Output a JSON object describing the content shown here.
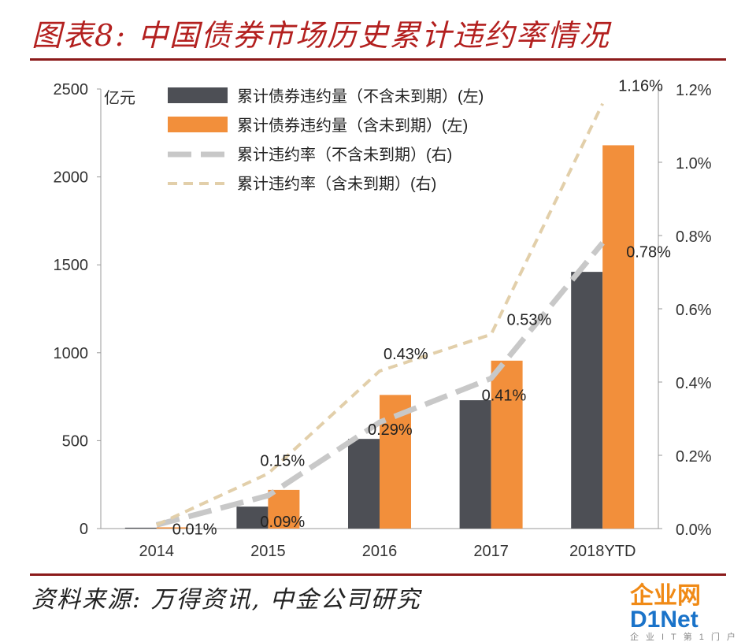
{
  "title": "图表8: 中国债券市场历史累计违约率情况",
  "source": "资料来源: 万得资讯, 中金公司研究",
  "watermark": {
    "part1": "企业网",
    "part2": "D1Net",
    "sub": "企业IT第1门户"
  },
  "colors": {
    "title": "#b3201f",
    "rule": "#8b1a1a",
    "bar_excl": "#4d4f55",
    "bar_incl": "#f28f3b",
    "line_excl": "#c8c8c8",
    "line_incl": "#e2cfaa"
  },
  "chart_data": {
    "type": "bar",
    "categories": [
      "2014",
      "2015",
      "2016",
      "2017",
      "2018YTD"
    ],
    "left_axis": {
      "unit": "亿元",
      "ylim": [
        0,
        2500
      ],
      "ticks": [
        0,
        500,
        1000,
        1500,
        2000,
        2500
      ]
    },
    "right_axis": {
      "ylim": [
        0.0,
        1.2
      ],
      "ticks": [
        "0.0%",
        "0.2%",
        "0.4%",
        "0.6%",
        "0.8%",
        "1.0%",
        "1.2%"
      ]
    },
    "series": [
      {
        "name": "累计债券违约量（不含未到期）(左)",
        "kind": "bar",
        "axis": "left",
        "values": [
          5,
          125,
          510,
          730,
          1460
        ]
      },
      {
        "name": "累计债券违约量（含未到期）(左)",
        "kind": "bar",
        "axis": "left",
        "values": [
          7,
          220,
          760,
          955,
          2180
        ]
      },
      {
        "name": "累计违约率（不含未到期）(右)",
        "kind": "line",
        "axis": "right",
        "style": "long-dash",
        "values": [
          0.01,
          0.09,
          0.29,
          0.41,
          0.78
        ],
        "labels": [
          "0.01%",
          "0.09%",
          "0.29%",
          "0.41%",
          "0.78%"
        ]
      },
      {
        "name": "累计违约率（含未到期）(右)",
        "kind": "line",
        "axis": "right",
        "style": "short-dash",
        "values": [
          0.01,
          0.15,
          0.43,
          0.53,
          1.16
        ],
        "labels": [
          "",
          "0.15%",
          "0.43%",
          "0.53%",
          "1.16%"
        ]
      }
    ],
    "legend": "top-left",
    "grid": false
  }
}
